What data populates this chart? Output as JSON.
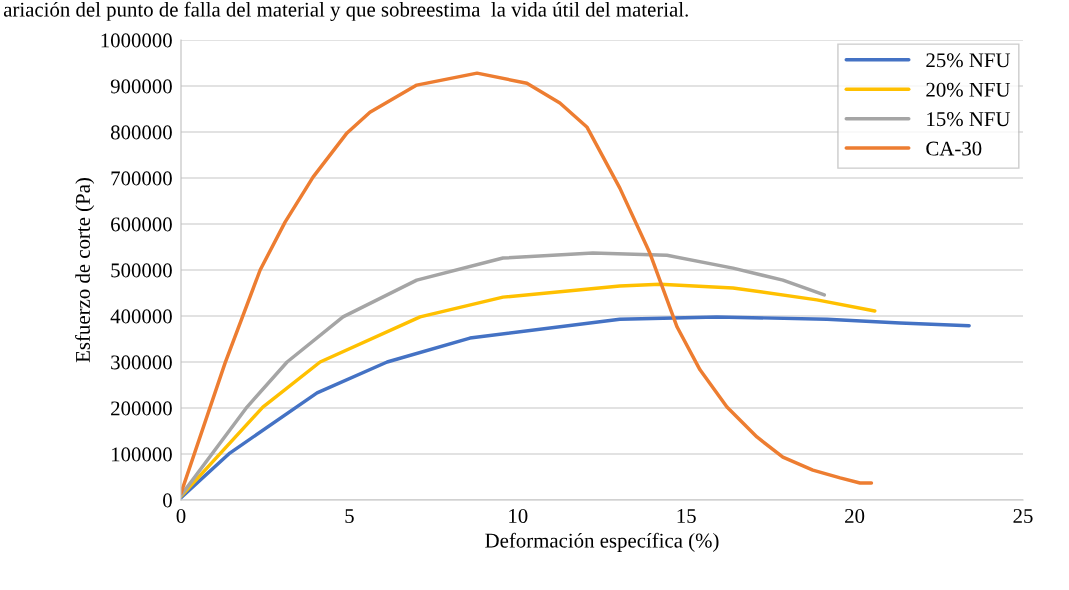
{
  "chart_data": {
    "type": "line",
    "xlabel": "Deformación específica (%)",
    "ylabel": "Esfuerzo de corte (Pa)",
    "annotations": [
      "ariación del punto de falla del material y que sobreestima  la vida útil del material."
    ],
    "xlim": [
      0,
      25
    ],
    "xticks": [
      0,
      5,
      10,
      15,
      20,
      25
    ],
    "ylim": [
      0,
      1000000
    ],
    "yticks": [
      0,
      100000,
      200000,
      300000,
      400000,
      500000,
      600000,
      700000,
      800000,
      900000,
      1000000
    ],
    "grid": "y",
    "legend": "top right",
    "marker": "none",
    "line_style": "solid",
    "series": [
      {
        "name": "25% NFU",
        "color": "#4472c4",
        "x": [
          0,
          1.45,
          4.04,
          6.12,
          8.58,
          13.03,
          15.91,
          19.18,
          21.35,
          23.4
        ],
        "values": [
          5000,
          102000,
          233000,
          300000,
          352000,
          393000,
          398000,
          393000,
          385000,
          379000
        ]
      },
      {
        "name": "20% NFU",
        "color": "#ffc000",
        "x": [
          0,
          2.43,
          4.13,
          7.1,
          9.56,
          13.03,
          14.22,
          16.39,
          18.88,
          20.6
        ],
        "values": [
          8000,
          202000,
          300000,
          398000,
          441000,
          465000,
          469000,
          461000,
          435000,
          411000
        ]
      },
      {
        "name": "15% NFU",
        "color": "#a5a5a5",
        "x": [
          0,
          1.96,
          3.15,
          4.81,
          7.0,
          9.56,
          12.23,
          14.43,
          16.39,
          17.87,
          19.1
        ],
        "values": [
          10000,
          202000,
          300000,
          398000,
          478000,
          526000,
          537000,
          532000,
          504000,
          478000,
          446000
        ]
      },
      {
        "name": "CA-30",
        "color": "#ed7d31",
        "x": [
          0,
          1.31,
          2.35,
          3.09,
          3.92,
          4.93,
          5.61,
          7.0,
          8.79,
          10.27,
          11.25,
          12.05,
          13.03,
          13.92,
          14.73,
          15.41,
          16.21,
          17.1,
          17.87,
          18.76,
          19.57,
          20.16,
          20.5
        ],
        "values": [
          15000,
          298000,
          500000,
          604000,
          702000,
          798000,
          843000,
          902000,
          928000,
          906000,
          863000,
          811000,
          678000,
          537000,
          376000,
          283000,
          202000,
          137000,
          93000,
          65000,
          48000,
          37000,
          37000
        ]
      }
    ]
  }
}
